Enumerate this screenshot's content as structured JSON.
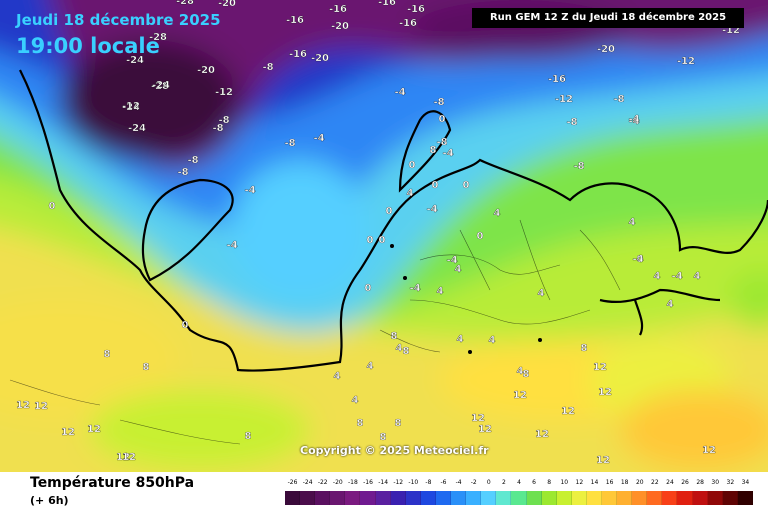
{
  "header": {
    "date": "Jeudi 18 décembre 2025",
    "time": "19:00 locale",
    "run": "Run GEM 12 Z du Jeudi 18 décembre 2025"
  },
  "footer": {
    "parameter": "Température 850hPa",
    "step": "(+ 6h)",
    "copyright": "Copyright © 2025 Meteociel.fr"
  },
  "legend": {
    "labels": [
      "-26",
      "-24",
      "-22",
      "-20",
      "-18",
      "-16",
      "-14",
      "-12",
      "-10",
      "-8",
      "-6",
      "-4",
      "-2",
      "0",
      "2",
      "4",
      "6",
      "8",
      "10",
      "12",
      "14",
      "16",
      "18",
      "20",
      "22",
      "24",
      "26",
      "28",
      "30",
      "32",
      "34"
    ],
    "colors": [
      "#3a0a3a",
      "#4b0d4b",
      "#5a1060",
      "#6a1670",
      "#7b1a80",
      "#701a90",
      "#5a20a0",
      "#3a20b0",
      "#2c32c8",
      "#1e48e0",
      "#1f6af0",
      "#2a90f8",
      "#3ab0ff",
      "#55cfff",
      "#60e8d0",
      "#5ae890",
      "#6ee050",
      "#9ce830",
      "#c8f030",
      "#ecf040",
      "#ffe040",
      "#ffc838",
      "#ffb030",
      "#ff9028",
      "#ff6a20",
      "#f84018",
      "#e02010",
      "#c01010",
      "#900808",
      "#600404",
      "#300000"
    ]
  },
  "isotherm_labels": [
    "-28",
    "-20",
    "-16",
    "-16",
    "-16",
    "-16",
    "-20",
    "-8",
    "-16",
    "-24",
    "-28",
    "-8",
    "-16",
    "-20",
    "-28",
    "-20",
    "-12",
    "-24",
    "-8",
    "-12",
    "-12",
    "-16",
    "-20",
    "-4",
    "-12",
    "-8",
    "-8",
    "-4",
    "-4",
    "-8",
    "-8",
    "-8",
    "-4",
    "-4",
    "-8",
    "-8",
    "-4",
    "-4",
    "0",
    "0",
    "0",
    "0",
    "0",
    "0",
    "0",
    "0",
    "4",
    "4",
    "4",
    "4",
    "4",
    "4",
    "4",
    "4",
    "4",
    "4",
    "4",
    "4",
    "4",
    "4",
    "4",
    "4",
    "8",
    "8",
    "8",
    "8",
    "8",
    "8",
    "8",
    "8",
    "8",
    "8",
    "12",
    "12",
    "12",
    "12",
    "12",
    "12",
    "12",
    "12",
    "12",
    "12",
    "12",
    "12",
    "12",
    "12",
    "12",
    "8",
    "0",
    "0",
    "0",
    "0",
    "-4",
    "-4",
    "-4",
    "-4",
    "-4",
    "-8",
    "-12",
    "-24",
    "-24",
    "-28"
  ]
}
